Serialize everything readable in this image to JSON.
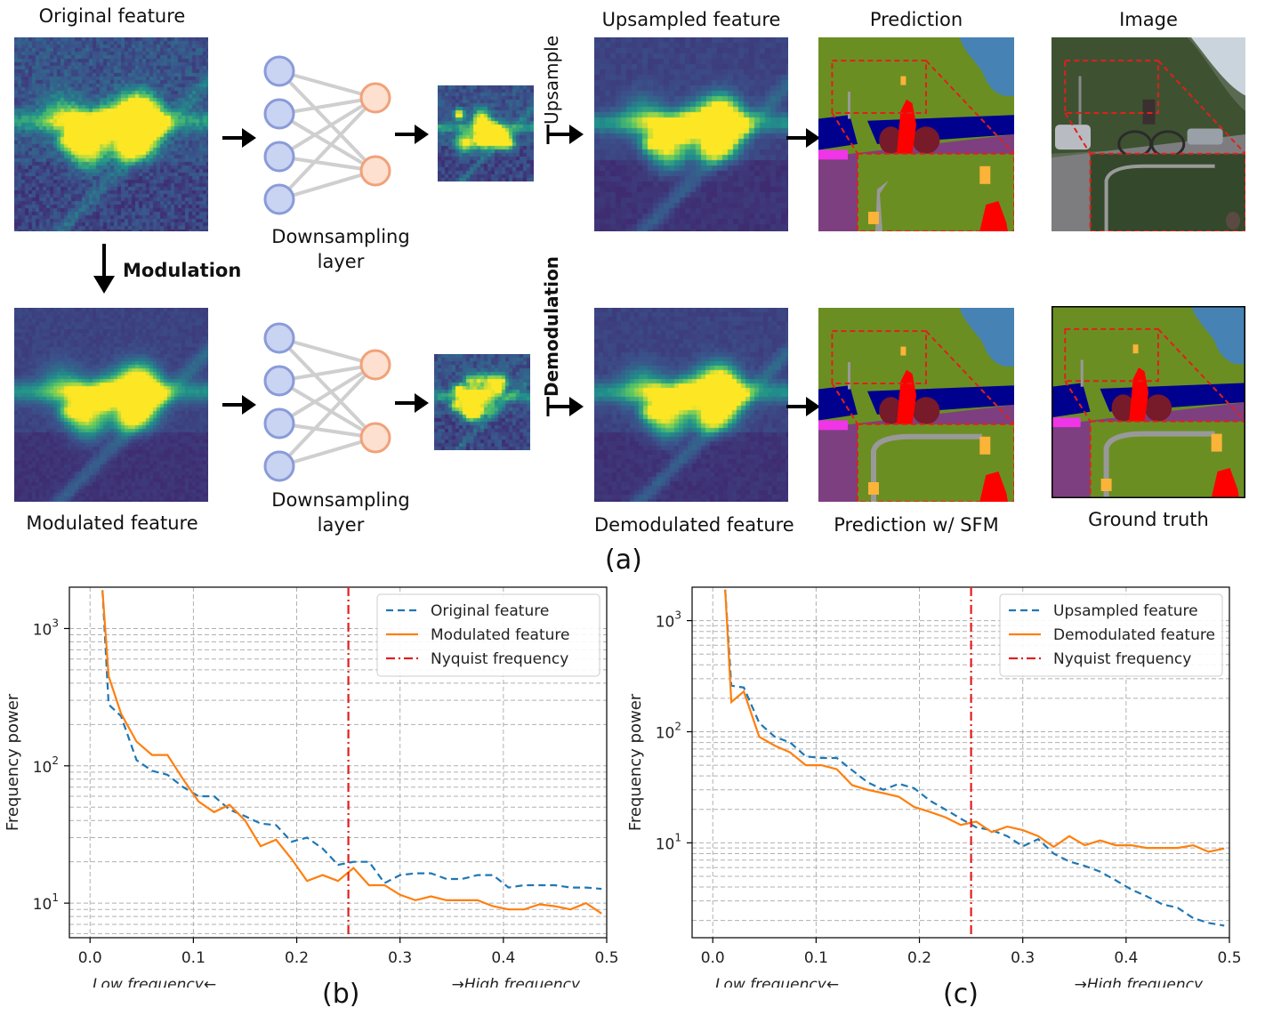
{
  "labels": {
    "original_feature": "Original feature",
    "modulated_feature": "Modulated feature",
    "modulation": "Modulation",
    "downsampling_layer_1": "Downsampling",
    "downsampling_layer_2": "layer",
    "upsample": "Upsample",
    "demodulation": "Demodulation",
    "upsampled_feature": "Upsampled feature",
    "demodulated_feature": "Demodulated feature",
    "prediction": "Prediction",
    "prediction_sfm": "Prediction w/ SFM",
    "image": "Image",
    "ground_truth": "Ground truth",
    "caption_a": "(a)",
    "caption_b": "(b)",
    "caption_c": "(c)"
  },
  "colors": {
    "heat_low": "#3b1f66",
    "heat_mid": "#1f8e8a",
    "heat_high": "#f5e23a",
    "node_blue_fill": "#c9d3f2",
    "node_blue_stroke": "#8a9bd8",
    "node_orange_fill": "#fde0cf",
    "node_orange_stroke": "#f0a27a",
    "seg_vegetation": "#6b8e23",
    "seg_sky": "#4682b4",
    "seg_road": "#7e3f80",
    "seg_car": "#00008e",
    "seg_person": "#ff0000",
    "seg_bicycle": "#771a2a",
    "seg_pole": "#999999",
    "seg_sign": "#fbb338",
    "seg_sidewalk": "#f034e8",
    "zoom_box": "#e0201a"
  },
  "chart_data": [
    {
      "type": "line",
      "id": "b",
      "xlabel": "",
      "ylabel": "Frequency power",
      "xlim": [
        -0.02,
        0.5
      ],
      "ylim": [
        5.6,
        2000
      ],
      "yscale": "log",
      "xticks": [
        "0.0",
        "0.1",
        "0.2",
        "0.3",
        "0.4",
        "0.5"
      ],
      "yticks": [
        "10",
        "10",
        "10"
      ],
      "ytick_exponents": [
        "1",
        "2",
        "3"
      ],
      "x_annotation_left": "Low frequency←",
      "x_annotation_right": "→High frequency",
      "grid": true,
      "legend_position": "top-right",
      "nyquist": 0.25,
      "series": [
        {
          "name": "Original feature",
          "style": "dashed",
          "color": "#1f77b4",
          "x": [
            0.012,
            0.018,
            0.03,
            0.045,
            0.06,
            0.075,
            0.09,
            0.105,
            0.12,
            0.135,
            0.15,
            0.165,
            0.18,
            0.195,
            0.21,
            0.225,
            0.24,
            0.255,
            0.27,
            0.285,
            0.3,
            0.315,
            0.33,
            0.345,
            0.36,
            0.375,
            0.39,
            0.405,
            0.42,
            0.435,
            0.45,
            0.465,
            0.48,
            0.495
          ],
          "y": [
            1900,
            280,
            230,
            110,
            92,
            86,
            70,
            60,
            60,
            48,
            43,
            38,
            37,
            28,
            30,
            25,
            19,
            20,
            20,
            14,
            16,
            16.5,
            16.5,
            15,
            15,
            16,
            16,
            13,
            13.5,
            13.5,
            13.5,
            13,
            13,
            12.7
          ]
        },
        {
          "name": "Modulated feature",
          "style": "solid",
          "color": "#ff7f0e",
          "x": [
            0.012,
            0.018,
            0.03,
            0.045,
            0.06,
            0.075,
            0.09,
            0.105,
            0.12,
            0.135,
            0.15,
            0.165,
            0.18,
            0.195,
            0.21,
            0.225,
            0.24,
            0.255,
            0.27,
            0.285,
            0.3,
            0.315,
            0.33,
            0.345,
            0.36,
            0.375,
            0.39,
            0.405,
            0.42,
            0.435,
            0.45,
            0.465,
            0.48,
            0.495
          ],
          "y": [
            1900,
            450,
            240,
            150,
            120,
            120,
            80,
            55,
            46,
            52,
            40,
            26,
            29,
            21,
            14.5,
            16,
            14.5,
            18,
            13.5,
            13.5,
            11.5,
            10.5,
            11.2,
            10.5,
            10.5,
            10.5,
            9.5,
            9.0,
            9.0,
            9.8,
            9.5,
            9.0,
            10,
            8.4
          ]
        },
        {
          "name": "Nyquist frequency",
          "style": "dashdot",
          "color": "#e02020"
        }
      ]
    },
    {
      "type": "line",
      "id": "c",
      "xlabel": "",
      "ylabel": "Frequency power",
      "xlim": [
        -0.02,
        0.5
      ],
      "ylim": [
        1.4,
        2000
      ],
      "yscale": "log",
      "xticks": [
        "0.0",
        "0.1",
        "0.2",
        "0.3",
        "0.4",
        "0.5"
      ],
      "yticks": [
        "10",
        "10",
        "10"
      ],
      "ytick_exponents": [
        "1",
        "2",
        "3"
      ],
      "x_annotation_left": "Low frequency←",
      "x_annotation_right": "→High frequency",
      "grid": true,
      "legend_position": "top-right",
      "nyquist": 0.25,
      "series": [
        {
          "name": "Upsampled feature",
          "style": "dashed",
          "color": "#1f77b4",
          "x": [
            0.012,
            0.018,
            0.03,
            0.045,
            0.06,
            0.075,
            0.09,
            0.105,
            0.12,
            0.135,
            0.15,
            0.165,
            0.18,
            0.195,
            0.21,
            0.225,
            0.24,
            0.255,
            0.27,
            0.285,
            0.3,
            0.315,
            0.33,
            0.345,
            0.36,
            0.375,
            0.39,
            0.405,
            0.42,
            0.435,
            0.45,
            0.465,
            0.48,
            0.495
          ],
          "y": [
            1900,
            260,
            250,
            120,
            90,
            80,
            60,
            58,
            58,
            45,
            35,
            30,
            34,
            31,
            24,
            20,
            16.5,
            13.8,
            13,
            11.5,
            9.3,
            10.8,
            8.0,
            6.8,
            6.2,
            5.5,
            4.6,
            3.8,
            3.3,
            2.8,
            2.6,
            2.1,
            1.9,
            1.8
          ]
        },
        {
          "name": "Demodulated feature",
          "style": "solid",
          "color": "#ff7f0e",
          "x": [
            0.012,
            0.018,
            0.03,
            0.045,
            0.06,
            0.075,
            0.09,
            0.105,
            0.12,
            0.135,
            0.15,
            0.165,
            0.18,
            0.195,
            0.21,
            0.225,
            0.24,
            0.255,
            0.27,
            0.285,
            0.3,
            0.315,
            0.33,
            0.345,
            0.36,
            0.375,
            0.39,
            0.405,
            0.42,
            0.435,
            0.45,
            0.465,
            0.48,
            0.495
          ],
          "y": [
            1900,
            185,
            230,
            90,
            75,
            65,
            50,
            50,
            46,
            33,
            30,
            28,
            26,
            21,
            19,
            17,
            14.5,
            15.5,
            12.5,
            14,
            13,
            11.5,
            9.2,
            11.5,
            9.5,
            10.5,
            9.5,
            9.5,
            9.0,
            9.0,
            9.0,
            9.5,
            8.3,
            8.9
          ]
        },
        {
          "name": "Nyquist frequency",
          "style": "dashdot",
          "color": "#e02020"
        }
      ]
    }
  ]
}
